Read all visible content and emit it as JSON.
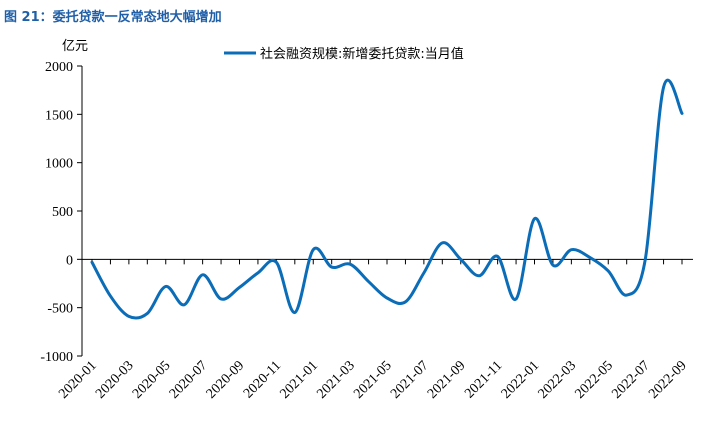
{
  "figure": {
    "title": "图 21：委托贷款一反常态地大幅增加"
  },
  "chart_data": {
    "type": "line",
    "ylabel": "亿元",
    "ylim": [
      -1000,
      2000
    ],
    "yticks": [
      -1000,
      -500,
      0,
      500,
      1000,
      1500,
      2000
    ],
    "x": [
      "2020-01",
      "2020-02",
      "2020-03",
      "2020-04",
      "2020-05",
      "2020-06",
      "2020-07",
      "2020-08",
      "2020-09",
      "2020-10",
      "2020-11",
      "2020-12",
      "2021-01",
      "2021-02",
      "2021-03",
      "2021-04",
      "2021-05",
      "2021-06",
      "2021-07",
      "2021-08",
      "2021-09",
      "2021-10",
      "2021-11",
      "2021-12",
      "2022-01",
      "2022-02",
      "2022-03",
      "2022-04",
      "2022-05",
      "2022-06",
      "2022-07",
      "2022-08",
      "2022-09"
    ],
    "xticks": [
      "2020-01",
      "2020-03",
      "2020-05",
      "2020-07",
      "2020-09",
      "2020-11",
      "2021-01",
      "2021-03",
      "2021-05",
      "2021-07",
      "2021-09",
      "2021-11",
      "2022-01",
      "2022-03",
      "2022-05",
      "2022-07",
      "2022-09"
    ],
    "legend_position": "top-center",
    "series": [
      {
        "name": "社会融资规模:新增委托贷款:当月值",
        "color": "#0b6db8",
        "values": [
          -30,
          -380,
          -590,
          -560,
          -280,
          -470,
          -160,
          -410,
          -290,
          -140,
          -30,
          -550,
          100,
          -80,
          -50,
          -230,
          -400,
          -440,
          -140,
          170,
          0,
          -170,
          30,
          -410,
          420,
          -60,
          100,
          20,
          -120,
          -370,
          -10,
          1780,
          1510
        ]
      }
    ]
  }
}
